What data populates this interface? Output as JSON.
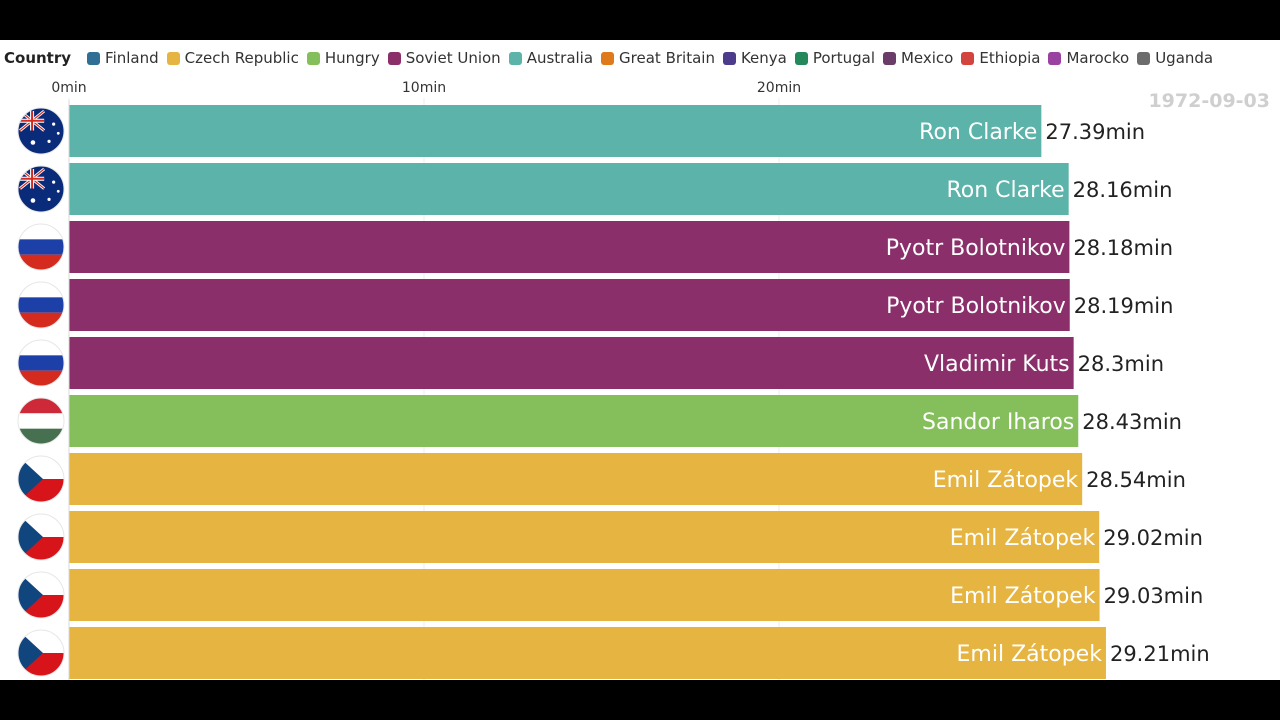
{
  "legend": {
    "title": "Country",
    "items": [
      {
        "label": "Finland",
        "color": "#2f6f95"
      },
      {
        "label": "Czech Republic",
        "color": "#e6b441"
      },
      {
        "label": "Hungry",
        "color": "#84bf5c"
      },
      {
        "label": "Soviet Union",
        "color": "#8b2f6b"
      },
      {
        "label": "Australia",
        "color": "#5bb3a9"
      },
      {
        "label": "Great Britain",
        "color": "#df7a1c"
      },
      {
        "label": "Kenya",
        "color": "#4d3c8c"
      },
      {
        "label": "Portugal",
        "color": "#23895a"
      },
      {
        "label": "Mexico",
        "color": "#6a3c6a"
      },
      {
        "label": "Ethiopia",
        "color": "#d3443f"
      },
      {
        "label": "Marocko",
        "color": "#9a42a1"
      },
      {
        "label": "Uganda",
        "color": "#6c6c6c"
      }
    ]
  },
  "date_label": "1972-09-03",
  "chart_data": {
    "type": "bar",
    "orientation": "horizontal",
    "x_ticks": [
      {
        "value": 0,
        "label": "0min"
      },
      {
        "value": 10,
        "label": "10min"
      },
      {
        "value": 20,
        "label": "20min"
      }
    ],
    "grid": true,
    "unit_suffix": "min",
    "bars": [
      {
        "name": "Ron Clarke",
        "country": "Australia",
        "flag": "australia-flag-icon",
        "value": 27.39,
        "value_label": "27.39min"
      },
      {
        "name": "Ron Clarke",
        "country": "Australia",
        "flag": "australia-flag-icon",
        "value": 28.16,
        "value_label": "28.16min"
      },
      {
        "name": "Pyotr Bolotnikov",
        "country": "Soviet Union",
        "flag": "russia-flag-icon",
        "value": 28.18,
        "value_label": "28.18min"
      },
      {
        "name": "Pyotr Bolotnikov",
        "country": "Soviet Union",
        "flag": "russia-flag-icon",
        "value": 28.19,
        "value_label": "28.19min"
      },
      {
        "name": "Vladimir Kuts",
        "country": "Soviet Union",
        "flag": "russia-flag-icon",
        "value": 28.3,
        "value_label": "28.3min"
      },
      {
        "name": "Sandor Iharos",
        "country": "Hungry",
        "flag": "hungary-flag-icon",
        "value": 28.43,
        "value_label": "28.43min"
      },
      {
        "name": "Emil Zátopek",
        "country": "Czech Republic",
        "flag": "czech-flag-icon",
        "value": 28.54,
        "value_label": "28.54min"
      },
      {
        "name": "Emil Zátopek",
        "country": "Czech Republic",
        "flag": "czech-flag-icon",
        "value": 29.02,
        "value_label": "29.02min"
      },
      {
        "name": "Emil Zátopek",
        "country": "Czech Republic",
        "flag": "czech-flag-icon",
        "value": 29.03,
        "value_label": "29.03min"
      },
      {
        "name": "Emil Zátopek",
        "country": "Czech Republic",
        "flag": "czech-flag-icon",
        "value": 29.21,
        "value_label": "29.21min"
      }
    ]
  }
}
